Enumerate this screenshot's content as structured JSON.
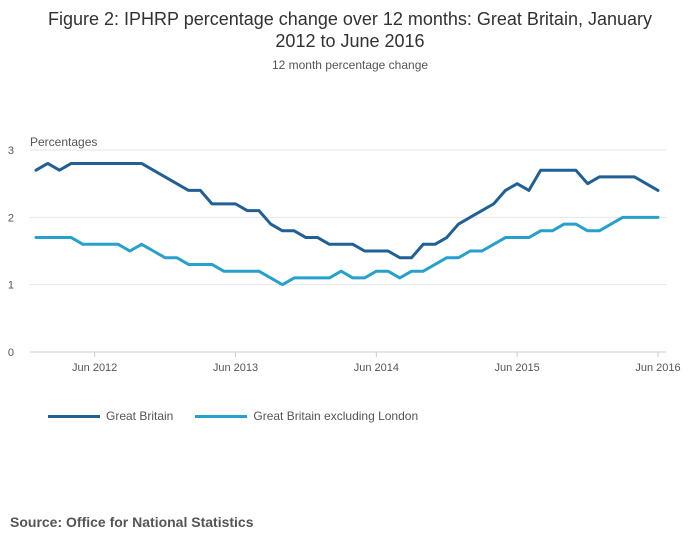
{
  "title_line1": "Figure 2: IPHRP percentage change over 12 months: Great Britain, January",
  "title_line2": "2012 to June 2016",
  "subtitle": "12 month percentage change",
  "source": "Source: Office for National Statistics",
  "chart_data": {
    "type": "line",
    "ylabel": "Percentages",
    "xlabel": "",
    "ylim": [
      0,
      3
    ],
    "yticks": [
      0,
      1,
      2,
      3
    ],
    "xticks": [
      "Jun 2012",
      "Jun 2013",
      "Jun 2014",
      "Jun 2015",
      "Jun 2016"
    ],
    "x_range": [
      "2012-01",
      "2016-06"
    ],
    "grid": true,
    "legend_position": "bottom-left",
    "x": [
      "2012-01",
      "2012-02",
      "2012-03",
      "2012-04",
      "2012-05",
      "2012-06",
      "2012-07",
      "2012-08",
      "2012-09",
      "2012-10",
      "2012-11",
      "2012-12",
      "2013-01",
      "2013-02",
      "2013-03",
      "2013-04",
      "2013-05",
      "2013-06",
      "2013-07",
      "2013-08",
      "2013-09",
      "2013-10",
      "2013-11",
      "2013-12",
      "2014-01",
      "2014-02",
      "2014-03",
      "2014-04",
      "2014-05",
      "2014-06",
      "2014-07",
      "2014-08",
      "2014-09",
      "2014-10",
      "2014-11",
      "2014-12",
      "2015-01",
      "2015-02",
      "2015-03",
      "2015-04",
      "2015-05",
      "2015-06",
      "2015-07",
      "2015-08",
      "2015-09",
      "2015-10",
      "2015-11",
      "2015-12",
      "2016-01",
      "2016-02",
      "2016-03",
      "2016-04",
      "2016-05",
      "2016-06"
    ],
    "series": [
      {
        "name": "Great Britain",
        "color": "#206095",
        "values": [
          2.7,
          2.8,
          2.7,
          2.8,
          2.8,
          2.8,
          2.8,
          2.8,
          2.8,
          2.8,
          2.7,
          2.6,
          2.5,
          2.4,
          2.4,
          2.2,
          2.2,
          2.2,
          2.1,
          2.1,
          1.9,
          1.8,
          1.8,
          1.7,
          1.7,
          1.6,
          1.6,
          1.6,
          1.5,
          1.5,
          1.5,
          1.4,
          1.4,
          1.6,
          1.6,
          1.7,
          1.9,
          2.0,
          2.1,
          2.2,
          2.4,
          2.5,
          2.4,
          2.7,
          2.7,
          2.7,
          2.7,
          2.5,
          2.6,
          2.6,
          2.6,
          2.6,
          2.5,
          2.4
        ]
      },
      {
        "name": "Great Britain excluding London",
        "color": "#27a0cc",
        "values": [
          1.7,
          1.7,
          1.7,
          1.7,
          1.6,
          1.6,
          1.6,
          1.6,
          1.5,
          1.6,
          1.5,
          1.4,
          1.4,
          1.3,
          1.3,
          1.3,
          1.2,
          1.2,
          1.2,
          1.2,
          1.1,
          1.0,
          1.1,
          1.1,
          1.1,
          1.1,
          1.2,
          1.1,
          1.1,
          1.2,
          1.2,
          1.1,
          1.2,
          1.2,
          1.3,
          1.4,
          1.4,
          1.5,
          1.5,
          1.6,
          1.7,
          1.7,
          1.7,
          1.8,
          1.8,
          1.9,
          1.9,
          1.8,
          1.8,
          1.9,
          2.0,
          2.0,
          2.0,
          2.0
        ]
      }
    ]
  }
}
